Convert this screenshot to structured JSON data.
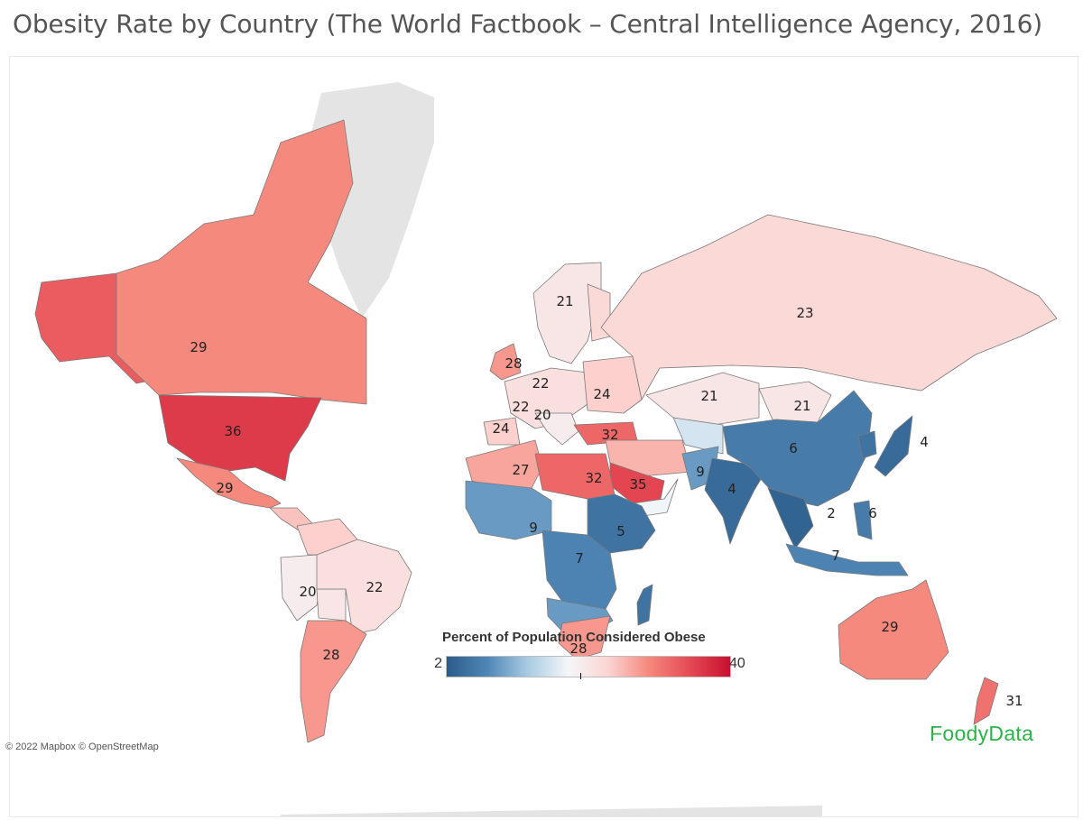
{
  "title": "Obesity Rate by Country (The World Factbook – Central Intelligence Agency, 2016)",
  "legend": {
    "title": "Percent of Population Considered Obese",
    "min": "2",
    "max": "40",
    "min_value": 2,
    "max_value": 40,
    "midpoint": 21,
    "colors": [
      "#2b5c8a",
      "#4f86b6",
      "#a8cbe3",
      "#f4f7f9",
      "#fbd4d2",
      "#f6877b",
      "#e54a54",
      "#c8102e"
    ]
  },
  "attribution": "© 2022 Mapbox © OpenStreetMap",
  "brand": "FoodyData",
  "brand_color": "#2db34a",
  "colors": {
    "no_data": "#e4e4e4",
    "border": "#7a7a7a"
  },
  "chart_data": {
    "type": "map",
    "metric": "Percent of Population Considered Obese",
    "labels": [
      {
        "region": "Canada",
        "value": 29
      },
      {
        "region": "United States",
        "value": 36
      },
      {
        "region": "Mexico",
        "value": 29
      },
      {
        "region": "Peru",
        "value": 20
      },
      {
        "region": "Brazil",
        "value": 22
      },
      {
        "region": "Argentina",
        "value": 28
      },
      {
        "region": "Sweden",
        "value": 21
      },
      {
        "region": "United Kingdom",
        "value": 28
      },
      {
        "region": "Germany",
        "value": 22
      },
      {
        "region": "France",
        "value": 22
      },
      {
        "region": "Italy",
        "value": 20
      },
      {
        "region": "Spain",
        "value": 24
      },
      {
        "region": "Ukraine",
        "value": 24
      },
      {
        "region": "Russia",
        "value": 23
      },
      {
        "region": "Kazakhstan",
        "value": 21
      },
      {
        "region": "Mongolia",
        "value": 21
      },
      {
        "region": "Turkey",
        "value": 32
      },
      {
        "region": "Algeria",
        "value": 27
      },
      {
        "region": "Libya",
        "value": 32
      },
      {
        "region": "Saudi Arabia",
        "value": 35
      },
      {
        "region": "Pakistan",
        "value": 9
      },
      {
        "region": "India",
        "value": 4
      },
      {
        "region": "China",
        "value": 6
      },
      {
        "region": "Japan",
        "value": 4
      },
      {
        "region": "Vietnam",
        "value": 2
      },
      {
        "region": "Philippines",
        "value": 6
      },
      {
        "region": "Indonesia",
        "value": 7
      },
      {
        "region": "Nigeria",
        "value": 9
      },
      {
        "region": "Ethiopia",
        "value": 5
      },
      {
        "region": "DR Congo",
        "value": 7
      },
      {
        "region": "South Africa",
        "value": 28
      },
      {
        "region": "Australia",
        "value": 29
      },
      {
        "region": "New Zealand",
        "value": 31
      }
    ]
  }
}
